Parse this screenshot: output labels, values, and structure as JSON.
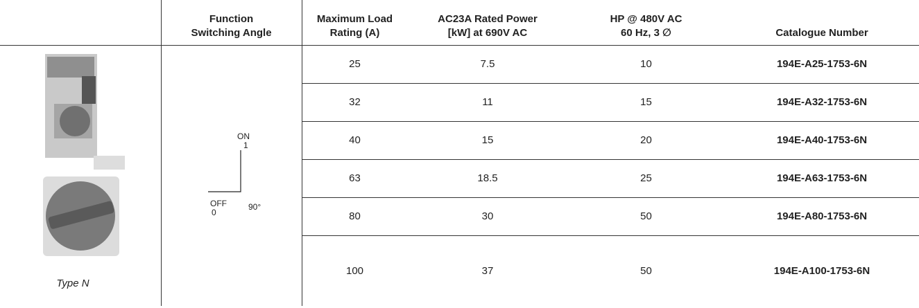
{
  "table": {
    "header": [
      [],
      [
        "Function",
        "Switching Angle"
      ],
      [
        "Maximum Load",
        "Rating (A)"
      ],
      [
        "AC23A Rated Power",
        "[kW] at 690V AC"
      ],
      [
        "HP @ 480V AC",
        "60 Hz, 3 ∅"
      ],
      [
        "Catalogue Number"
      ]
    ],
    "rows": [
      [
        "25",
        "7.5",
        "10",
        "194E-A25-1753-6N"
      ],
      [
        "32",
        "11",
        "15",
        "194E-A32-1753-6N"
      ],
      [
        "40",
        "15",
        "20",
        "194E-A40-1753-6N"
      ],
      [
        "63",
        "18.5",
        "25",
        "194E-A63-1753-6N"
      ],
      [
        "80",
        "30",
        "50",
        "194E-A80-1753-6N"
      ],
      [
        "100",
        "37",
        "50",
        "194E-A100-1753-6N"
      ]
    ],
    "image_caption": "Type N",
    "switch_diagram": {
      "on": "ON",
      "on_value": "1",
      "off": "OFF",
      "off_value": "0",
      "angle": "90°"
    }
  }
}
